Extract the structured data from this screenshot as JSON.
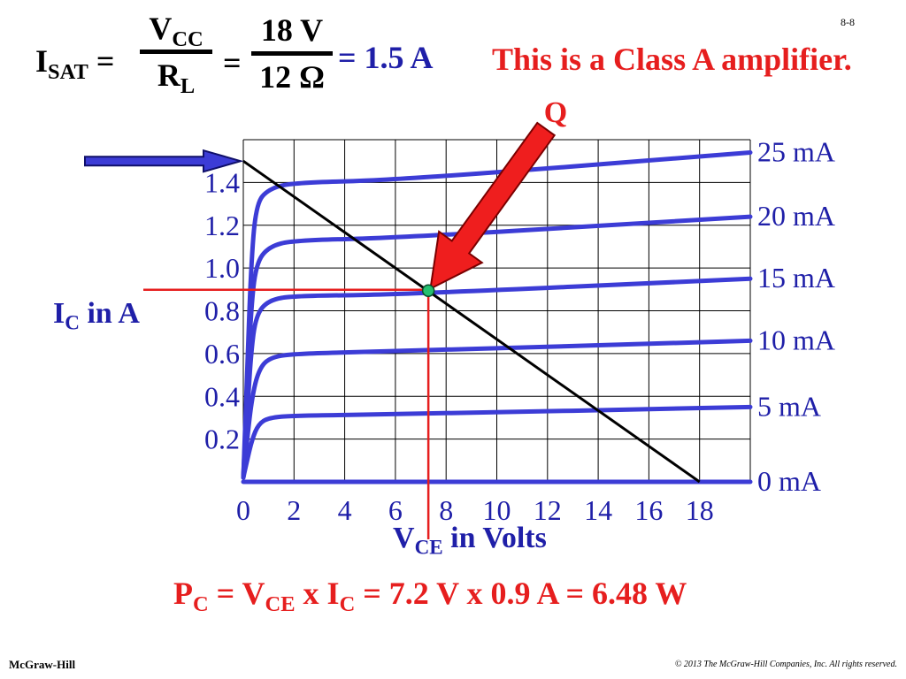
{
  "slide_number": "8-8",
  "formula_top": {
    "lhs_main": "I",
    "lhs_sub": "SAT",
    "eq1": "=",
    "num_main": "V",
    "num_sub": "CC",
    "den_main": "R",
    "den_sub": "L",
    "eq2": "=",
    "num2": "18 V",
    "den2": "12 Ω",
    "result": "= 1.5 A"
  },
  "class_note": "This is a Class A amplifier.",
  "power_formula": {
    "p_main": "P",
    "p_sub": "C",
    "eq1": " = V",
    "v_sub": "CE",
    "x": " x I",
    "i_sub": "C",
    "rest": " = 7.2 V x 0.9 A = 6.48 W"
  },
  "footer": {
    "left": "McGraw-Hill",
    "right": "© 2013 The McGraw-Hill Companies, Inc. All rights reserved."
  },
  "colors": {
    "curve_blue": "#3c3cd6",
    "text_blue": "#1f1fa8",
    "red": "#e61e1e",
    "q_point": "#25c070",
    "grid": "#000000"
  },
  "chart_data": {
    "type": "line",
    "title": "",
    "xlabel_main": "V",
    "xlabel_sub": "CE",
    "xlabel_rest": " in Volts",
    "ylabel_main": "I",
    "ylabel_sub": "C",
    "ylabel_rest": " in A",
    "xlim": [
      0,
      20
    ],
    "ylim": [
      0,
      1.6
    ],
    "x_ticks": [
      {
        "value": 0,
        "label": "0"
      },
      {
        "value": 2,
        "label": "2"
      },
      {
        "value": 4,
        "label": "4"
      },
      {
        "value": 6,
        "label": "6"
      },
      {
        "value": 8,
        "label": "8"
      },
      {
        "value": 10,
        "label": "10"
      },
      {
        "value": 12,
        "label": "12"
      },
      {
        "value": 14,
        "label": "14"
      },
      {
        "value": 16,
        "label": "16"
      },
      {
        "value": 18,
        "label": "18"
      }
    ],
    "y_ticks": [
      {
        "value": 0.2,
        "label": "0.2"
      },
      {
        "value": 0.4,
        "label": "0.4"
      },
      {
        "value": 0.6,
        "label": "0.6"
      },
      {
        "value": 0.8,
        "label": "0.8"
      },
      {
        "value": 1.0,
        "label": "1.0"
      },
      {
        "value": 1.2,
        "label": "1.2"
      },
      {
        "value": 1.4,
        "label": "1.4"
      }
    ],
    "grid": true,
    "series": [
      {
        "name": "0 mA",
        "points": [
          [
            0,
            0
          ],
          [
            20,
            0
          ]
        ]
      },
      {
        "name": "5 mA",
        "points": [
          [
            0,
            0.02
          ],
          [
            0.15,
            0.1
          ],
          [
            0.35,
            0.2
          ],
          [
            0.6,
            0.27
          ],
          [
            1.0,
            0.3
          ],
          [
            2,
            0.31
          ],
          [
            6,
            0.315
          ],
          [
            20,
            0.35
          ]
        ]
      },
      {
        "name": "10 mA",
        "points": [
          [
            0,
            0.02
          ],
          [
            0.15,
            0.2
          ],
          [
            0.35,
            0.4
          ],
          [
            0.6,
            0.52
          ],
          [
            1.0,
            0.58
          ],
          [
            2,
            0.6
          ],
          [
            6,
            0.61
          ],
          [
            20,
            0.66
          ]
        ]
      },
      {
        "name": "15 mA",
        "points": [
          [
            0,
            0.02
          ],
          [
            0.15,
            0.3
          ],
          [
            0.3,
            0.6
          ],
          [
            0.5,
            0.78
          ],
          [
            1.0,
            0.85
          ],
          [
            2,
            0.87
          ],
          [
            6,
            0.875
          ],
          [
            20,
            0.95
          ]
        ]
      },
      {
        "name": "20 mA",
        "points": [
          [
            0,
            0.02
          ],
          [
            0.15,
            0.4
          ],
          [
            0.3,
            0.8
          ],
          [
            0.5,
            1.02
          ],
          [
            1.0,
            1.1
          ],
          [
            2,
            1.13
          ],
          [
            6,
            1.14
          ],
          [
            20,
            1.24
          ]
        ]
      },
      {
        "name": "25 mA",
        "points": [
          [
            0,
            0.02
          ],
          [
            0.15,
            0.5
          ],
          [
            0.3,
            1.0
          ],
          [
            0.5,
            1.3
          ],
          [
            1.0,
            1.37
          ],
          [
            2,
            1.4
          ],
          [
            6,
            1.41
          ],
          [
            20,
            1.54
          ]
        ]
      }
    ],
    "load_line": {
      "points": [
        [
          0,
          1.5
        ],
        [
          18,
          0
        ]
      ]
    },
    "q_point": {
      "label": "Q",
      "x": 7.3,
      "y": 0.89
    }
  }
}
